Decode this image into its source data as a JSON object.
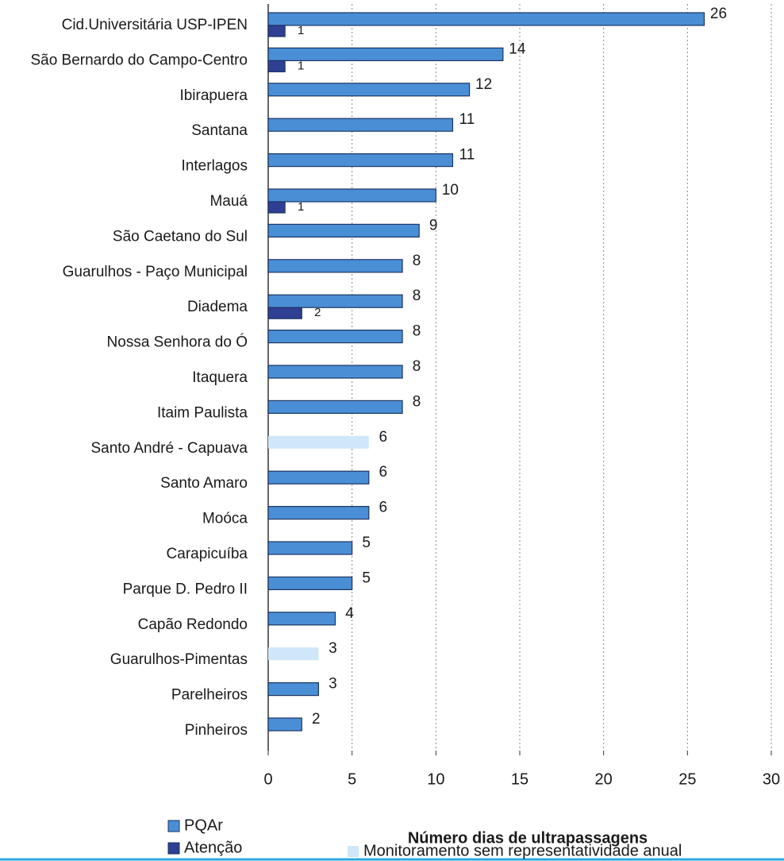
{
  "chart_data": {
    "type": "barh",
    "xlabel": "Número dias de ultrapassagens",
    "categories": [
      "Cid.Universitária USP-IPEN",
      "São Bernardo do Campo-Centro",
      "Ibirapuera",
      "Santana",
      "Interlagos",
      "Mauá",
      "São Caetano do Sul",
      "Guarulhos - Paço Municipal",
      "Diadema",
      "Nossa Senhora do Ó",
      "Itaquera",
      "Itaim Paulista",
      "Santo André - Capuava",
      "Santo Amaro",
      "Moóca",
      "Carapicuíba",
      "Parque D. Pedro II",
      "Capão Redondo",
      "Guarulhos-Pimentas",
      "Parelheiros",
      "Pinheiros"
    ],
    "series": [
      {
        "name": "PQAr",
        "color": "#4a8fd6",
        "values": [
          26,
          14,
          12,
          11,
          11,
          10,
          9,
          8,
          8,
          8,
          8,
          8,
          null,
          6,
          6,
          5,
          5,
          4,
          null,
          3,
          2
        ]
      },
      {
        "name": "Atenção",
        "color": "#2f3f94",
        "values": [
          1,
          1,
          null,
          null,
          null,
          1,
          null,
          null,
          2,
          null,
          null,
          null,
          null,
          null,
          null,
          null,
          null,
          null,
          null,
          null,
          null
        ]
      },
      {
        "name": "Monitoramento sem representatividade anual",
        "color": "#cfe7f8",
        "values": [
          null,
          null,
          null,
          null,
          null,
          null,
          null,
          null,
          null,
          null,
          null,
          null,
          6,
          null,
          null,
          null,
          null,
          null,
          3,
          null,
          null
        ]
      }
    ],
    "xlim": [
      0,
      30
    ],
    "xticks": [
      0,
      5,
      10,
      15,
      20,
      25,
      30
    ],
    "grid": true
  }
}
